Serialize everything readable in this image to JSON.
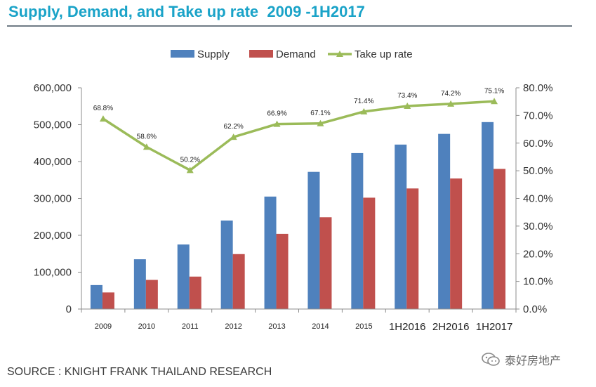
{
  "header": {
    "title": "Supply, Demand, and Take up rate  2009 -1H2017"
  },
  "footer": {
    "source": "SOURCE : KNIGHT FRANK THAILAND RESEARCH",
    "watermark_text": "泰好房地产",
    "watermark_icon": "wechat-icon"
  },
  "chart_data": {
    "type": "bar",
    "title": "",
    "xlabel": "",
    "ylabel": "",
    "categories": [
      "2009",
      "2010",
      "2011",
      "2012",
      "2013",
      "2014",
      "2015",
      "1H2016",
      "2H2016",
      "1H2017"
    ],
    "series": [
      {
        "name": "Supply",
        "type": "bar",
        "axis": "left",
        "color": "#4f81bd",
        "values": [
          65000,
          135000,
          175000,
          240000,
          305000,
          372000,
          423000,
          446000,
          475000,
          507000
        ]
      },
      {
        "name": "Demand",
        "type": "bar",
        "axis": "left",
        "color": "#c0504d",
        "values": [
          45000,
          79000,
          88000,
          149000,
          204000,
          249000,
          302000,
          327000,
          354000,
          380000
        ]
      },
      {
        "name": "Take up rate",
        "type": "line",
        "axis": "right",
        "color": "#9bbb59",
        "values": [
          68.8,
          58.6,
          50.2,
          62.2,
          66.9,
          67.1,
          71.4,
          73.4,
          74.2,
          75.1
        ],
        "labels": [
          "68.8%",
          "58.6%",
          "50.2%",
          "62.2%",
          "66.9%",
          "67.1%",
          "71.4%",
          "73.4%",
          "74.2%",
          "75.1%"
        ]
      }
    ],
    "y_left": {
      "min": 0,
      "max": 600000,
      "ticks": [
        0,
        100000,
        200000,
        300000,
        400000,
        500000,
        600000
      ],
      "tick_labels": [
        "0",
        "100,000",
        "200,000",
        "300,000",
        "400,000",
        "500,000",
        "600,000"
      ]
    },
    "y_right": {
      "min": 0,
      "max": 80,
      "ticks": [
        0,
        10,
        20,
        30,
        40,
        50,
        60,
        70,
        80
      ],
      "tick_labels": [
        "0.0%",
        "10.0%",
        "20.0%",
        "30.0%",
        "40.0%",
        "50.0%",
        "60.0%",
        "70.0%",
        "80.0%"
      ]
    },
    "grid": false,
    "legend_position": "top"
  }
}
